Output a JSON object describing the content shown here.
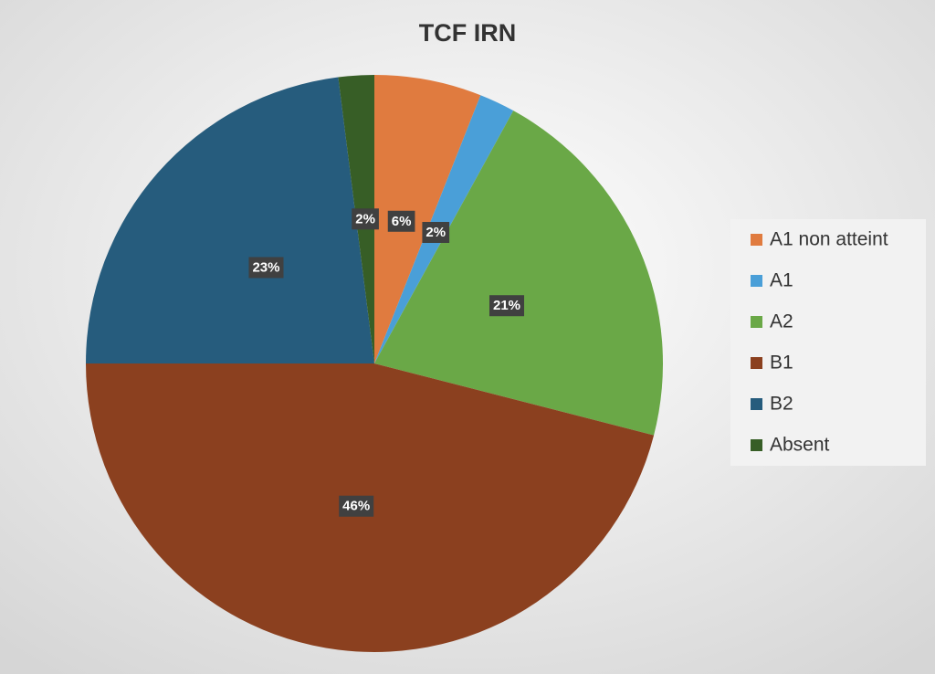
{
  "chart_data": {
    "type": "pie",
    "title": "TCF IRN",
    "categories": [
      "A1 non atteint",
      "A1",
      "A2",
      "B1",
      "B2",
      "Absent"
    ],
    "values": [
      6,
      2,
      21,
      46,
      23,
      2
    ],
    "value_labels": [
      "6%",
      "2%",
      "21%",
      "46%",
      "23%",
      "2%"
    ],
    "colors": [
      "#e07b3f",
      "#4a9fd8",
      "#6aa847",
      "#8b401f",
      "#265c7d",
      "#375e26"
    ],
    "legend": "right"
  }
}
